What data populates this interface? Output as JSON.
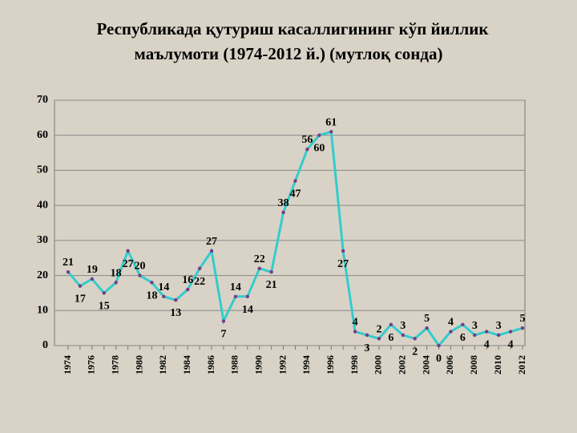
{
  "chart_data": {
    "type": "line",
    "title": [
      "Республикада қутуриш касаллигининг кўп йиллик",
      "маълумоти (1974-2012 й.) (мутлоқ сонда)"
    ],
    "categories": [
      "1974",
      null,
      "1976",
      null,
      "1978",
      null,
      "1980",
      null,
      "1982",
      null,
      "1984",
      null,
      "1986",
      null,
      "1988",
      null,
      "1990",
      null,
      "1992",
      null,
      "1994",
      null,
      "1996",
      null,
      "1998",
      null,
      "2000",
      null,
      "2002",
      null,
      "2004",
      null,
      "2006",
      null,
      "2008",
      null,
      "2010",
      null,
      "2012"
    ],
    "series": [
      {
        "color": "#33cccc",
        "marker_color": "#7a3a8a",
        "values": [
          21,
          17,
          19,
          15,
          18,
          27,
          20,
          18,
          14,
          13,
          16,
          22,
          27,
          7,
          14,
          14,
          22,
          21,
          38,
          47,
          56,
          60,
          61,
          27,
          4,
          3,
          2,
          6,
          3,
          2,
          5,
          0,
          4,
          6,
          3,
          4,
          3,
          4,
          5
        ]
      }
    ],
    "ylim": [
      0,
      70
    ],
    "yticks": [
      0,
      10,
      20,
      30,
      40,
      50,
      60,
      70
    ],
    "grid": true
  }
}
